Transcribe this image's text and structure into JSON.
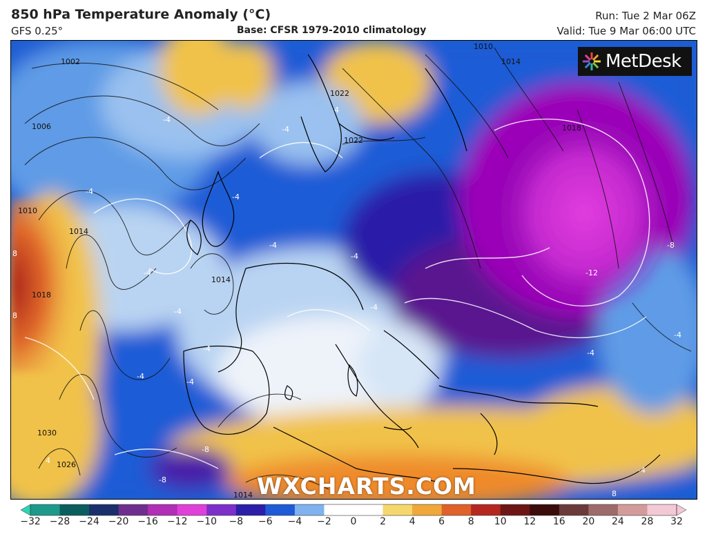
{
  "header": {
    "title": "850 hPa Temperature Anomaly (°C)",
    "model": "GFS 0.25°",
    "base": "Base: CFSR 1979-2010 climatology",
    "run": "Run: Tue 2 Mar 06Z",
    "valid": "Valid: Tue 9 Mar 06:00 UTC"
  },
  "branding": {
    "logo_text": "MetDesk",
    "watermark": "WXCHARTS.COM"
  },
  "map": {
    "pressure_labels": [
      "1002",
      "1006",
      "1010",
      "1014",
      "1018",
      "1022",
      "1026",
      "1030",
      "1014",
      "1018",
      "1010",
      "1014",
      "1014",
      "1022"
    ],
    "anomaly_labels": [
      "-4",
      "-4",
      "-4",
      "-4",
      "-4",
      "-4",
      "-4",
      "-4",
      "-4",
      "-4",
      "-4",
      "-4",
      "-4",
      "-8",
      "-8",
      "-8",
      "-12",
      "4",
      "4",
      "8",
      "8",
      "8",
      "-4",
      "-4"
    ],
    "colors": {
      "strong_cold": "#9b00b8",
      "cold_magenta": "#e23ddf",
      "deep_blue": "#2a1ea8",
      "blue": "#1f5bd6",
      "light_blue": "#7fb2ee",
      "white": "#f2f6fb",
      "warm_yellow": "#f1c24a",
      "orange": "#ef8a2a",
      "red": "#c83a2a"
    }
  },
  "colorbar": {
    "ticks": [
      "−32",
      "−28",
      "−24",
      "−20",
      "−16",
      "−12",
      "−10",
      "−8",
      "−6",
      "−4",
      "−2",
      "0",
      "2",
      "4",
      "6",
      "8",
      "10",
      "12",
      "16",
      "20",
      "24",
      "28",
      "32"
    ],
    "colors": [
      "#2fd4b5",
      "#1e9a8a",
      "#0c5e5e",
      "#1a2f6b",
      "#6e2f8f",
      "#b02fb6",
      "#e040d8",
      "#7d2fc9",
      "#2b1ea8",
      "#1f5bd6",
      "#7fb2ee",
      "#ffffff",
      "#ffffff",
      "#f6d76b",
      "#f0a83a",
      "#e0612a",
      "#b5281f",
      "#6e1616",
      "#3a0c0c",
      "#6b3a3a",
      "#9e6b6b",
      "#d49b9b",
      "#f2c9d4"
    ]
  }
}
